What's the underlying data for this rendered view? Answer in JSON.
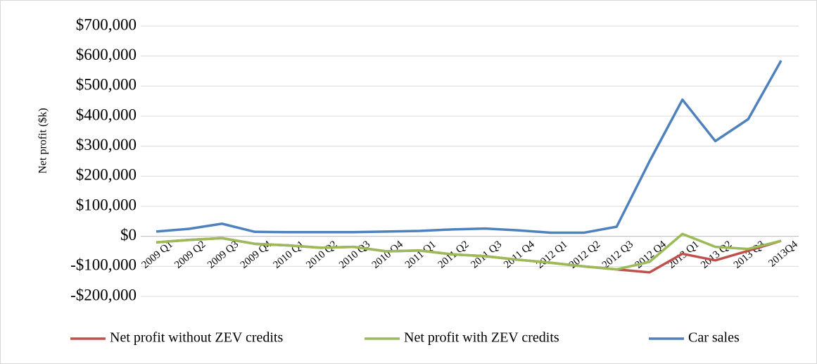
{
  "chart_data": {
    "type": "line",
    "y_label": "Net profit ($k)",
    "categories": [
      "2009 Q1",
      "2009 Q2",
      "2009 Q3",
      "2009 Q4",
      "2010 Q1",
      "2010 Q2",
      "2010 Q3",
      "2010 Q4",
      "2011 Q1",
      "2011 Q2",
      "2011 Q3",
      "2011 Q4",
      "2012 Q1",
      "2012 Q2",
      "2012 Q3",
      "2012 Q4",
      "2013 Q1",
      "2013 Q2",
      "2013 Q3",
      "2013Q4"
    ],
    "series": [
      {
        "name": "Net profit without ZEV credits",
        "color": "#c0504d",
        "values": [
          -20000,
          -12000,
          -6000,
          -25000,
          -30000,
          -38000,
          -35000,
          -50000,
          -47000,
          -60000,
          -66000,
          -78000,
          -88000,
          -100000,
          -110000,
          -120000,
          -58000,
          -80000,
          -48000,
          -15000
        ]
      },
      {
        "name": "Net profit with ZEV credits",
        "color": "#9bbb59",
        "values": [
          -20000,
          -12000,
          -6000,
          -25000,
          -30000,
          -38000,
          -35000,
          -50000,
          -47000,
          -60000,
          -66000,
          -78000,
          -88000,
          -100000,
          -110000,
          -85000,
          8000,
          -35000,
          -42000,
          -15000
        ]
      },
      {
        "name": "Car sales",
        "color": "#4f81bd",
        "values": [
          16000,
          25000,
          42000,
          15000,
          14000,
          14000,
          14000,
          16000,
          18000,
          23000,
          26000,
          20000,
          12000,
          12000,
          32000,
          250000,
          455000,
          317000,
          390000,
          585000
        ]
      }
    ],
    "ylim": [
      -200000,
      700000
    ],
    "yticks": [
      {
        "value": -200000,
        "label": "-$200,000"
      },
      {
        "value": -100000,
        "label": "-$100,000"
      },
      {
        "value": 0,
        "label": "$0"
      },
      {
        "value": 100000,
        "label": "$100,000"
      },
      {
        "value": 200000,
        "label": "$200,000"
      },
      {
        "value": 300000,
        "label": "$300,000"
      },
      {
        "value": 400000,
        "label": "$400,000"
      },
      {
        "value": 500000,
        "label": "$500,000"
      },
      {
        "value": 600000,
        "label": "$600,000"
      },
      {
        "value": 700000,
        "label": "$700,000"
      }
    ],
    "grid": true,
    "legend": "bottom"
  }
}
